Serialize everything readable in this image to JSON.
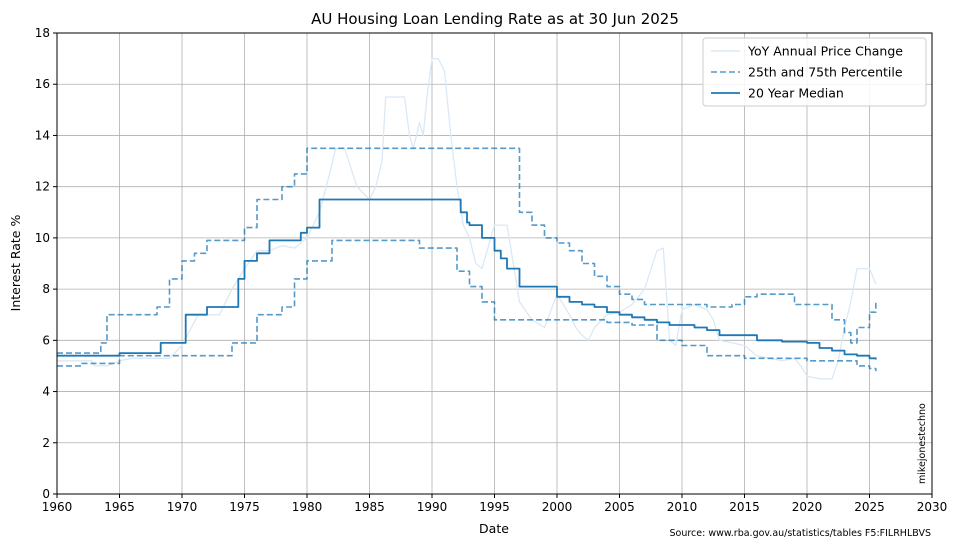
{
  "chart_data": {
    "type": "line",
    "title": "AU Housing Loan Lending Rate as at 30 Jun 2025",
    "xlabel": "Date",
    "ylabel": "Interest Rate %",
    "xlim": [
      1960,
      2030
    ],
    "ylim": [
      0,
      18
    ],
    "x_ticks": [
      1960,
      1965,
      1970,
      1975,
      1980,
      1985,
      1990,
      1995,
      2000,
      2005,
      2010,
      2015,
      2020,
      2025,
      2030
    ],
    "y_ticks": [
      0,
      2,
      4,
      6,
      8,
      10,
      12,
      14,
      16,
      18
    ],
    "grid": true,
    "legend_position": "top-right",
    "source": "Source: www.rba.gov.au/statistics/tables F5:FILRHLBVS",
    "watermark": "mikejonestechno",
    "colors": {
      "primary": "#1f77b4",
      "light": "#dbe8f5"
    },
    "series": [
      {
        "name": "YoY Annual Price Change",
        "style": "light",
        "x": [
          1960,
          1962.8,
          1963,
          1964,
          1965,
          1966,
          1968,
          1969,
          1970,
          1971.3,
          1972,
          1973,
          1974,
          1975,
          1976,
          1977,
          1978,
          1979,
          1980,
          1981,
          1981.8,
          1982.3,
          1983,
          1984,
          1985,
          1985.5,
          1986,
          1986.3,
          1987,
          1987.8,
          1988.2,
          1988.5,
          1989,
          1989.3,
          1989.6,
          1990,
          1990.5,
          1991,
          1991.5,
          1992,
          1992.5,
          1993,
          1993.5,
          1994,
          1995,
          1996,
          1996.5,
          1997,
          1998,
          1999,
          2000,
          2001,
          2001.5,
          2002,
          2002.5,
          2003,
          2004,
          2005,
          2006,
          2007,
          2008,
          2008.5,
          2009,
          2009.5,
          2010,
          2011,
          2012,
          2012.5,
          2013,
          2014,
          2015,
          2016,
          2017,
          2018,
          2019,
          2019.5,
          2020,
          2021,
          2022,
          2022.5,
          2023,
          2023.5,
          2024,
          2025,
          2025.5
        ],
        "y": [
          5.2,
          5.2,
          5.0,
          5.0,
          5.2,
          5.3,
          5.3,
          5.3,
          5.8,
          7.0,
          7.0,
          7.0,
          8.0,
          8.8,
          9.5,
          9.5,
          9.7,
          9.6,
          10.0,
          11.0,
          12.5,
          13.5,
          13.5,
          12.0,
          11.5,
          12.0,
          13.0,
          15.5,
          15.5,
          15.5,
          14.0,
          13.5,
          14.5,
          14.0,
          15.5,
          17.0,
          17.0,
          16.5,
          14.0,
          12.0,
          10.5,
          10.0,
          9.0,
          8.8,
          10.5,
          10.5,
          9.0,
          7.5,
          6.8,
          6.5,
          7.8,
          7.0,
          6.5,
          6.2,
          6.0,
          6.5,
          7.0,
          7.1,
          7.4,
          8.0,
          9.5,
          9.6,
          6.0,
          5.8,
          7.2,
          7.4,
          7.2,
          6.8,
          6.0,
          5.9,
          5.8,
          5.4,
          5.3,
          5.2,
          5.3,
          5.0,
          4.6,
          4.5,
          4.5,
          5.2,
          6.5,
          7.5,
          8.8,
          8.8,
          8.2
        ]
      },
      {
        "name": "25th and 75th Percentile",
        "style": "dashed",
        "x": [
          1960,
          1962,
          1963.5,
          1964,
          1966,
          1968,
          1969,
          1970,
          1971,
          1972,
          1974,
          1975,
          1976,
          1977,
          1978,
          1979,
          1980,
          1981,
          1985,
          1990,
          1995,
          1996.5,
          1997,
          1998,
          1999,
          2000,
          2001,
          2002,
          2003,
          2004,
          2005,
          2006,
          2007,
          2008,
          2010,
          2012,
          2014,
          2015,
          2016,
          2018,
          2019,
          2021,
          2022,
          2023,
          2023.5,
          2024,
          2025,
          2025.5
        ],
        "y": [
          5.5,
          5.5,
          5.9,
          7.0,
          7.0,
          7.3,
          8.4,
          9.1,
          9.4,
          9.9,
          9.9,
          10.4,
          11.5,
          11.5,
          12.0,
          12.5,
          13.5,
          13.5,
          13.5,
          13.5,
          13.5,
          13.5,
          11.0,
          10.5,
          10.0,
          9.8,
          9.5,
          9.0,
          8.5,
          8.1,
          7.8,
          7.6,
          7.4,
          7.4,
          7.4,
          7.3,
          7.4,
          7.7,
          7.8,
          7.8,
          7.4,
          7.4,
          6.8,
          6.3,
          5.9,
          6.5,
          7.1,
          7.5
        ]
      },
      {
        "name": "25th and 75th Percentile (lower)",
        "style": "dashed",
        "x": [
          1960,
          1962,
          1964,
          1965,
          1970,
          1973,
          1974,
          1975,
          1976,
          1977,
          1978,
          1979,
          1980,
          1982,
          1985,
          1989,
          1991,
          1992,
          1993,
          1994,
          1995,
          2000,
          2004,
          2006,
          2008,
          2010,
          2012,
          2015,
          2020,
          2023,
          2024,
          2025,
          2025.5
        ],
        "y": [
          5.0,
          5.1,
          5.1,
          5.4,
          5.4,
          5.4,
          5.9,
          5.9,
          7.0,
          7.0,
          7.3,
          8.4,
          9.1,
          9.9,
          9.9,
          9.6,
          9.6,
          8.7,
          8.1,
          7.5,
          6.8,
          6.8,
          6.7,
          6.6,
          6.0,
          5.8,
          5.4,
          5.3,
          5.2,
          5.2,
          5.0,
          4.9,
          4.8
        ]
      },
      {
        "name": "20 Year Median",
        "style": "solid",
        "x": [
          1960,
          1962,
          1963.5,
          1965,
          1968,
          1968.3,
          1970,
          1970.3,
          1972,
          1973.8,
          1974.5,
          1975,
          1976,
          1977,
          1979,
          1979.5,
          1980,
          1981,
          1985,
          1990,
          1992,
          1992.3,
          1992.8,
          1993,
          1994,
          1995,
          1995.5,
          1996,
          1997,
          1999,
          2000,
          2001,
          2002,
          2003,
          2004,
          2005,
          2006,
          2007,
          2008,
          2009,
          2010,
          2011,
          2012,
          2013,
          2015,
          2016,
          2018,
          2020,
          2021,
          2022,
          2023,
          2024,
          2025,
          2025.5
        ],
        "y": [
          5.4,
          5.4,
          5.4,
          5.5,
          5.5,
          5.9,
          5.9,
          7.0,
          7.3,
          7.3,
          8.4,
          9.1,
          9.4,
          9.9,
          9.9,
          10.2,
          10.4,
          11.5,
          11.5,
          11.5,
          11.5,
          11.0,
          10.6,
          10.5,
          10.0,
          9.5,
          9.2,
          8.8,
          8.1,
          8.1,
          7.7,
          7.5,
          7.4,
          7.3,
          7.1,
          7.0,
          6.9,
          6.8,
          6.7,
          6.6,
          6.6,
          6.5,
          6.4,
          6.2,
          6.2,
          6.0,
          5.95,
          5.9,
          5.7,
          5.6,
          5.45,
          5.4,
          5.3,
          5.25
        ]
      }
    ]
  }
}
